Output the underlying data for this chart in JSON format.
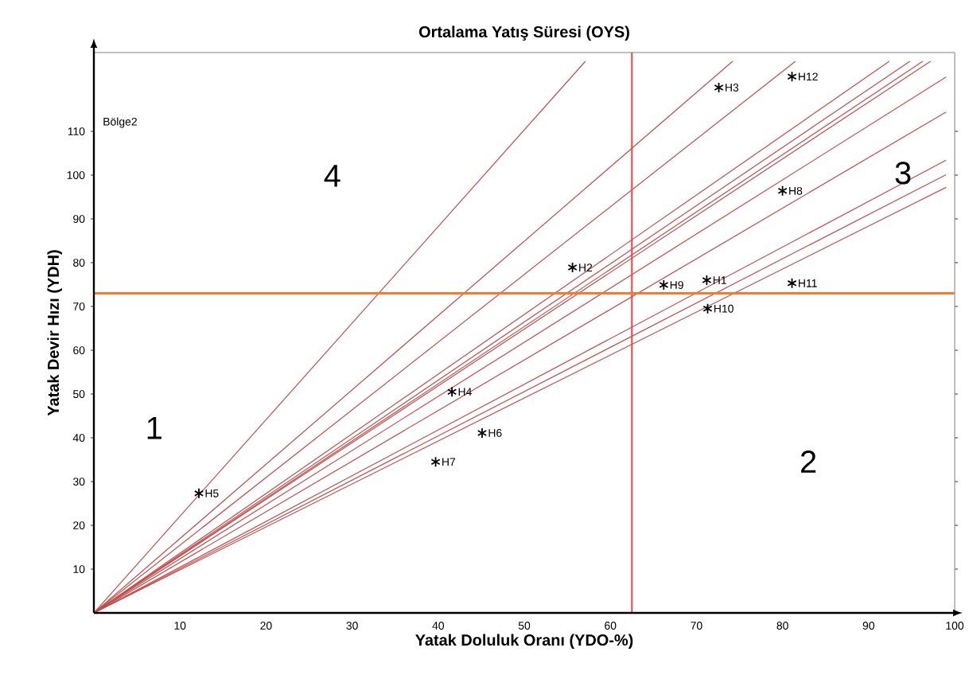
{
  "chart_data": {
    "type": "line",
    "title": "Ortalama Yatış Süresi (OYS)",
    "xlabel": "Yatak Doluluk Oranı (YDO-%)",
    "ylabel": "Yatak Devir Hızı (YDH)",
    "xlim": [
      0,
      100
    ],
    "ylim": [
      0,
      128
    ],
    "xticks": [
      10,
      20,
      30,
      40,
      50,
      60,
      70,
      80,
      90,
      100
    ],
    "yticks": [
      10,
      20,
      30,
      40,
      50,
      60,
      70,
      80,
      90,
      100,
      110
    ],
    "series": [
      {
        "color": "#c0504d",
        "x": [
          0,
          57.1
        ],
        "values": [
          0,
          126
        ]
      },
      {
        "color": "#c0504d",
        "x": [
          0,
          74.2
        ],
        "values": [
          0,
          126
        ]
      },
      {
        "color": "#c0504d",
        "x": [
          0,
          81.5
        ],
        "values": [
          0,
          126
        ]
      },
      {
        "color": "#c0504d",
        "x": [
          0,
          92.4
        ],
        "values": [
          0,
          126
        ]
      },
      {
        "color": "#c0504d",
        "x": [
          0,
          94.8
        ],
        "values": [
          0,
          126
        ]
      },
      {
        "color": "#c0504d",
        "x": [
          0,
          96.3
        ],
        "values": [
          0,
          126
        ]
      },
      {
        "color": "#c0504d",
        "x": [
          0,
          97.2
        ],
        "values": [
          0,
          126
        ]
      },
      {
        "color": "#c0504d",
        "x": [
          0,
          99
        ],
        "values": [
          0,
          122.4
        ]
      },
      {
        "color": "#c0504d",
        "x": [
          0,
          99
        ],
        "values": [
          0,
          114.4
        ]
      },
      {
        "color": "#c0504d",
        "x": [
          0,
          99
        ],
        "values": [
          0,
          103.4
        ]
      },
      {
        "color": "#c0504d",
        "x": [
          0,
          99
        ],
        "values": [
          0,
          100.1
        ]
      },
      {
        "color": "#c0504d",
        "x": [
          0,
          99
        ],
        "values": [
          0,
          97.2
        ]
      },
      {
        "type": "scatter",
        "marker": "cross",
        "color": "#000000",
        "x": [
          71.2,
          55.6,
          72.6,
          41.6,
          12.2,
          45.1,
          39.7,
          80,
          66.2,
          71.3,
          81.1,
          81.1
        ],
        "values": [
          76,
          78.9,
          120,
          50.5,
          27.3,
          41.1,
          34.5,
          96.4,
          74.9,
          69.5,
          75.3,
          122.5
        ],
        "value_labels": [
          "H1",
          "H2",
          "H3",
          "H4",
          "H5",
          "H6",
          "H7",
          "H8",
          "H9",
          "H10",
          "H11",
          "H12"
        ]
      }
    ],
    "ref_lines": [
      {
        "axis": "x",
        "value": 62.5,
        "color": "#ff4040"
      },
      {
        "axis": "y",
        "value": 73,
        "color": "#ed7d31"
      }
    ],
    "annotations": [
      "Bölge2",
      "1",
      "2",
      "3",
      "4"
    ]
  }
}
